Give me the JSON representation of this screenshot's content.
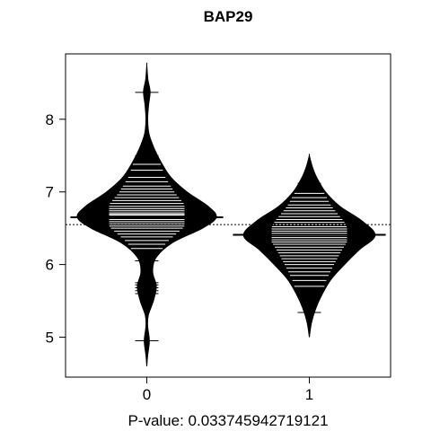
{
  "chart_data": {
    "type": "beanplot",
    "title": "BAP29",
    "xlabel": "P-value: 0.033745942719121",
    "ylabel": "",
    "categories": [
      "0",
      "1"
    ],
    "ylim": [
      4.45,
      8.9
    ],
    "xlim": [
      -0.5,
      1.5
    ],
    "yticks": [
      "5",
      "6",
      "7",
      "8"
    ],
    "grid": false,
    "overall_mean": 6.55,
    "colors": {
      "bean": "#000000",
      "lines": "#ffffff",
      "frame": "#000000",
      "background": "#ffffff"
    },
    "series": [
      {
        "name": "0",
        "mean": 6.65,
        "median": 6.69,
        "density": [
          [
            4.6,
            0.0
          ],
          [
            4.75,
            0.012
          ],
          [
            4.95,
            0.035
          ],
          [
            5.15,
            0.012
          ],
          [
            5.3,
            0.02
          ],
          [
            5.5,
            0.09
          ],
          [
            5.7,
            0.13
          ],
          [
            5.9,
            0.08
          ],
          [
            6.1,
            0.13
          ],
          [
            6.3,
            0.35
          ],
          [
            6.5,
            0.76
          ],
          [
            6.65,
            0.95
          ],
          [
            6.8,
            0.84
          ],
          [
            7.0,
            0.55
          ],
          [
            7.2,
            0.33
          ],
          [
            7.4,
            0.2
          ],
          [
            7.6,
            0.1
          ],
          [
            7.8,
            0.03
          ],
          [
            8.0,
            0.012
          ],
          [
            8.2,
            0.025
          ],
          [
            8.38,
            0.045
          ],
          [
            8.55,
            0.015
          ],
          [
            8.75,
            0.0
          ]
        ],
        "observations": [
          4.95,
          5.6,
          5.64,
          5.68,
          5.72,
          5.75,
          6.05,
          6.15,
          6.22,
          6.28,
          6.33,
          6.38,
          6.42,
          6.46,
          6.5,
          6.53,
          6.56,
          6.59,
          6.62,
          6.65,
          6.68,
          6.71,
          6.74,
          6.77,
          6.8,
          6.84,
          6.88,
          6.92,
          6.96,
          7.0,
          7.04,
          7.08,
          7.14,
          7.2,
          7.3,
          7.38,
          7.44,
          7.5,
          8.37
        ]
      },
      {
        "name": "1",
        "mean": 6.41,
        "median": 6.41,
        "density": [
          [
            5.0,
            0.0
          ],
          [
            5.2,
            0.03
          ],
          [
            5.4,
            0.09
          ],
          [
            5.6,
            0.18
          ],
          [
            5.8,
            0.3
          ],
          [
            6.0,
            0.48
          ],
          [
            6.2,
            0.68
          ],
          [
            6.4,
            0.9
          ],
          [
            6.6,
            0.72
          ],
          [
            6.8,
            0.42
          ],
          [
            7.0,
            0.22
          ],
          [
            7.2,
            0.1
          ],
          [
            7.35,
            0.04
          ],
          [
            7.5,
            0.0
          ]
        ],
        "observations": [
          5.34,
          5.6,
          5.7,
          5.78,
          5.85,
          5.9,
          5.95,
          6.0,
          6.04,
          6.08,
          6.12,
          6.16,
          6.2,
          6.24,
          6.28,
          6.31,
          6.34,
          6.37,
          6.4,
          6.43,
          6.46,
          6.49,
          6.52,
          6.55,
          6.58,
          6.62,
          6.66,
          6.7,
          6.74,
          6.78,
          6.82,
          6.87,
          6.92,
          6.98,
          7.05,
          7.12
        ]
      }
    ]
  }
}
